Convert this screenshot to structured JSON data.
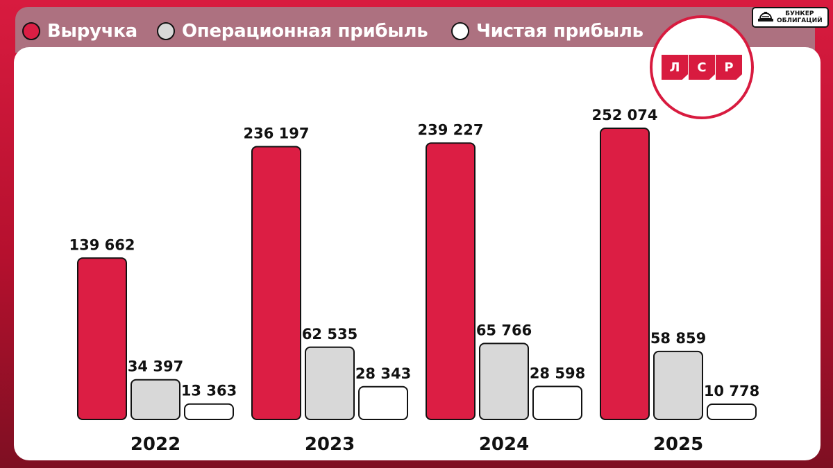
{
  "legend": [
    {
      "label": "Выручка",
      "color": "#dc1e44"
    },
    {
      "label": "Операционная прибыль",
      "color": "#d8d8d8"
    },
    {
      "label": "Чистая прибыль",
      "color": "#ffffff"
    }
  ],
  "badge": {
    "line1": "БУНКЕР",
    "line2": "ОБЛИГАЦИЙ",
    "icon": "bunker-icon"
  },
  "logo": {
    "letters": [
      "Л",
      "С",
      "Р"
    ],
    "color": "#d81b3f"
  },
  "chart_data": {
    "type": "bar",
    "categories": [
      "2022",
      "2023",
      "2024",
      "2025"
    ],
    "series": [
      {
        "name": "Выручка",
        "color": "#dc1e44",
        "values": [
          139662,
          236197,
          239227,
          252074
        ],
        "labels": [
          "139 662",
          "236 197",
          "239 227",
          "252 074"
        ]
      },
      {
        "name": "Операционная прибыль",
        "color": "#d8d8d8",
        "values": [
          34397,
          62535,
          65766,
          58859
        ],
        "labels": [
          "34 397",
          "62 535",
          "65 766",
          "58 859"
        ]
      },
      {
        "name": "Чистая прибыль",
        "color": "#ffffff",
        "values": [
          13363,
          28343,
          28598,
          10778
        ],
        "labels": [
          "13 363",
          "28 343",
          "28 598",
          "10 778"
        ]
      }
    ],
    "title": "",
    "xlabel": "",
    "ylabel": "",
    "grid": false,
    "legend_position": "top"
  }
}
